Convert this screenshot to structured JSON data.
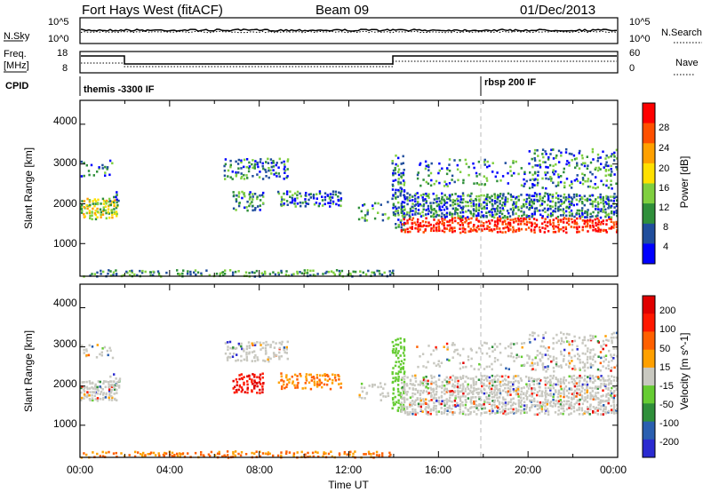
{
  "header": {
    "station": "Fort Hays West (fitACF)",
    "beam": "Beam 09",
    "date": "01/Dec/2013"
  },
  "top_panels": {
    "nsky_label": "N.Sky",
    "nsky_ticks": [
      "10^5",
      "10^0"
    ],
    "nsearch_label": "N.Search",
    "nsearch_ticks": [
      "10^5",
      "10^0"
    ],
    "freq_label_1": "Freq.",
    "freq_label_2": "[MHz]",
    "freq_ticks": [
      "18",
      "8"
    ],
    "nave_label": "Nave",
    "nave_ticks": [
      "60",
      "0"
    ],
    "cpid_label": "CPID",
    "cpid_segments": [
      "themis -3300 IF",
      "rbsp 200 IF"
    ],
    "colors": {
      "line": "#000000"
    }
  },
  "chart_data": [
    {
      "type": "heatmap",
      "xlabel": "",
      "ylabel": "Slant Range [km]",
      "yticks": [
        "4000",
        "3000",
        "2000",
        "1000"
      ],
      "ylim": [
        180,
        4600
      ],
      "xlim_hours": [
        0,
        24
      ],
      "colorbar": {
        "label": "Power [dB]",
        "ticks": [
          "28",
          "24",
          "20",
          "16",
          "12",
          "8",
          "4"
        ],
        "colors": [
          "#0000ff",
          "#204e9c",
          "#2f8f3a",
          "#7fcf3f",
          "#ffe000",
          "#ffa000",
          "#ff5000",
          "#ff0000"
        ]
      },
      "grid": false
    },
    {
      "type": "heatmap",
      "xlabel": "Time UT",
      "ylabel": "Slant Range [km]",
      "yticks": [
        "4000",
        "3000",
        "2000",
        "1000"
      ],
      "ylim": [
        180,
        4600
      ],
      "xlim_hours": [
        0,
        24
      ],
      "xticks": [
        "00:00",
        "04:00",
        "08:00",
        "12:00",
        "16:00",
        "20:00",
        "00:00"
      ],
      "colorbar": {
        "label": "Velocity [m s^-1]",
        "ticks": [
          "200",
          "100",
          "50",
          "15",
          "-15",
          "-50",
          "-100",
          "-200"
        ],
        "colors": [
          "#2b2bd0",
          "#2a5fb0",
          "#2f8f3a",
          "#66cc33",
          "#c8c8c0",
          "#ffa000",
          "#ff6000",
          "#ff1800",
          "#e00000"
        ]
      },
      "grid": false
    }
  ]
}
